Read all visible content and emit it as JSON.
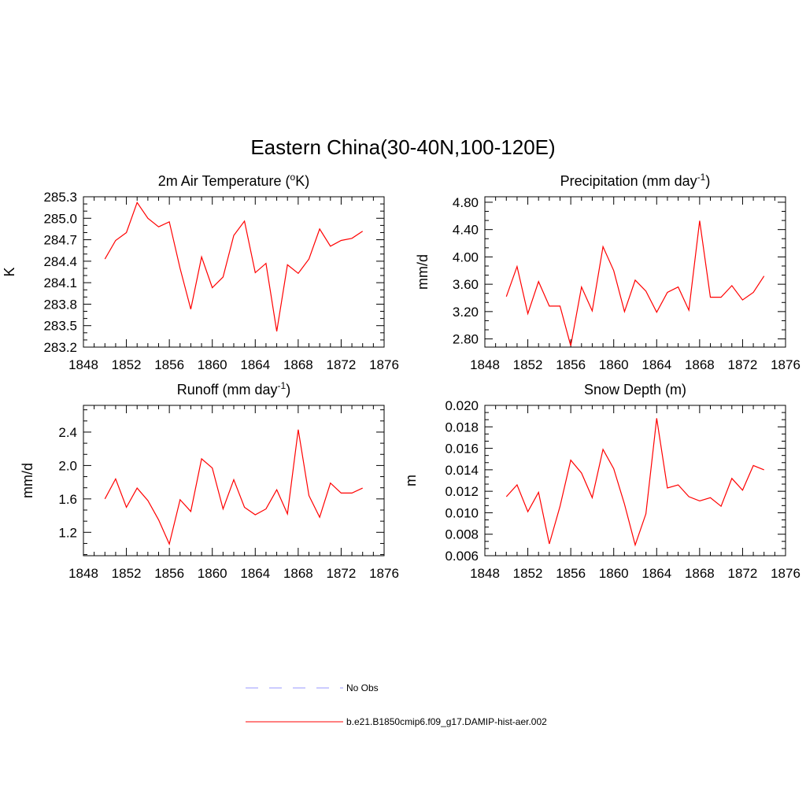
{
  "title": "Eastern China(30-40N,100-120E)",
  "legend": [
    {
      "label": "No Obs",
      "color": "#9999ff",
      "dashed": true
    },
    {
      "label": "b.e21.B1850cmip6.f09_g17.DAMIP-hist-aer.002",
      "color": "#ff0000",
      "dashed": false
    }
  ],
  "chart_data": [
    {
      "type": "line",
      "title": "2m Air Temperature (",
      "title_sup": "o",
      "title_suffix": "K)",
      "xlabel": "",
      "ylabel": "K",
      "xlim": [
        1848,
        1876
      ],
      "ylim": [
        283.2,
        285.3
      ],
      "xticks": [
        "1848",
        "1852",
        "1856",
        "1860",
        "1864",
        "1868",
        "1872",
        "1876"
      ],
      "yticks": [
        "283.2",
        "283.5",
        "283.8",
        "284.1",
        "284.4",
        "284.7",
        "285.0",
        "285.3"
      ],
      "color": "#ff0000",
      "x": [
        1850,
        1851,
        1852,
        1853,
        1854,
        1855,
        1856,
        1857,
        1858,
        1859,
        1860,
        1861,
        1862,
        1863,
        1864,
        1865,
        1866,
        1867,
        1868,
        1869,
        1870,
        1871,
        1872,
        1873,
        1874
      ],
      "y": [
        284.43,
        284.69,
        284.8,
        285.22,
        285.0,
        284.88,
        284.95,
        284.3,
        283.73,
        284.46,
        284.03,
        284.18,
        284.76,
        284.96,
        284.24,
        284.37,
        283.42,
        284.35,
        284.23,
        284.43,
        284.85,
        284.61,
        284.69,
        284.72,
        284.82
      ]
    },
    {
      "type": "line",
      "title": "Precipitation (mm day",
      "title_sup": "-1",
      "title_suffix": ")",
      "xlabel": "",
      "ylabel": "mm/d",
      "xlim": [
        1848,
        1876
      ],
      "ylim": [
        2.68,
        4.88
      ],
      "xticks": [
        "1848",
        "1852",
        "1856",
        "1860",
        "1864",
        "1868",
        "1872",
        "1876"
      ],
      "yticks": [
        "2.80",
        "3.20",
        "3.60",
        "4.00",
        "4.40",
        "4.80"
      ],
      "color": "#ff0000",
      "x": [
        1850,
        1851,
        1852,
        1853,
        1854,
        1855,
        1856,
        1857,
        1858,
        1859,
        1860,
        1861,
        1862,
        1863,
        1864,
        1865,
        1866,
        1867,
        1868,
        1869,
        1870,
        1871,
        1872,
        1873,
        1874
      ],
      "y": [
        3.42,
        3.86,
        3.17,
        3.64,
        3.28,
        3.28,
        2.7,
        3.56,
        3.21,
        4.15,
        3.8,
        3.2,
        3.66,
        3.5,
        3.19,
        3.48,
        3.56,
        3.22,
        4.53,
        3.41,
        3.41,
        3.58,
        3.37,
        3.48,
        3.72
      ]
    },
    {
      "type": "line",
      "title": "Runoff (mm day",
      "title_sup": "-1",
      "title_suffix": ")",
      "xlabel": "",
      "ylabel": "mm/d",
      "xlim": [
        1848,
        1876
      ],
      "ylim": [
        0.92,
        2.72
      ],
      "xticks": [
        "1848",
        "1852",
        "1856",
        "1860",
        "1864",
        "1868",
        "1872",
        "1876"
      ],
      "yticks": [
        "1.2",
        "1.6",
        "2.0",
        "2.4"
      ],
      "color": "#ff0000",
      "x": [
        1850,
        1851,
        1852,
        1853,
        1854,
        1855,
        1856,
        1857,
        1858,
        1859,
        1860,
        1861,
        1862,
        1863,
        1864,
        1865,
        1866,
        1867,
        1868,
        1869,
        1870,
        1871,
        1872,
        1873,
        1874
      ],
      "y": [
        1.6,
        1.84,
        1.5,
        1.73,
        1.58,
        1.35,
        1.06,
        1.59,
        1.45,
        2.08,
        1.97,
        1.48,
        1.83,
        1.5,
        1.41,
        1.48,
        1.71,
        1.42,
        2.43,
        1.64,
        1.38,
        1.79,
        1.67,
        1.67,
        1.73
      ]
    },
    {
      "type": "line",
      "title": "Snow Depth (m)",
      "title_sup": "",
      "title_suffix": "",
      "xlabel": "",
      "ylabel": "m",
      "xlim": [
        1848,
        1876
      ],
      "ylim": [
        0.006,
        0.02
      ],
      "xticks": [
        "1848",
        "1852",
        "1856",
        "1860",
        "1864",
        "1868",
        "1872",
        "1876"
      ],
      "yticks": [
        "0.006",
        "0.008",
        "0.010",
        "0.012",
        "0.014",
        "0.016",
        "0.018",
        "0.020"
      ],
      "color": "#ff0000",
      "x": [
        1850,
        1851,
        1852,
        1853,
        1854,
        1855,
        1856,
        1857,
        1858,
        1859,
        1860,
        1861,
        1862,
        1863,
        1864,
        1865,
        1866,
        1867,
        1868,
        1869,
        1870,
        1871,
        1872,
        1873,
        1874
      ],
      "y": [
        0.0115,
        0.0126,
        0.0101,
        0.0119,
        0.0071,
        0.0106,
        0.0149,
        0.0137,
        0.0114,
        0.0159,
        0.0141,
        0.0108,
        0.007,
        0.0099,
        0.0188,
        0.0123,
        0.0126,
        0.0115,
        0.0111,
        0.0114,
        0.0106,
        0.0132,
        0.0121,
        0.0144,
        0.014
      ]
    }
  ]
}
